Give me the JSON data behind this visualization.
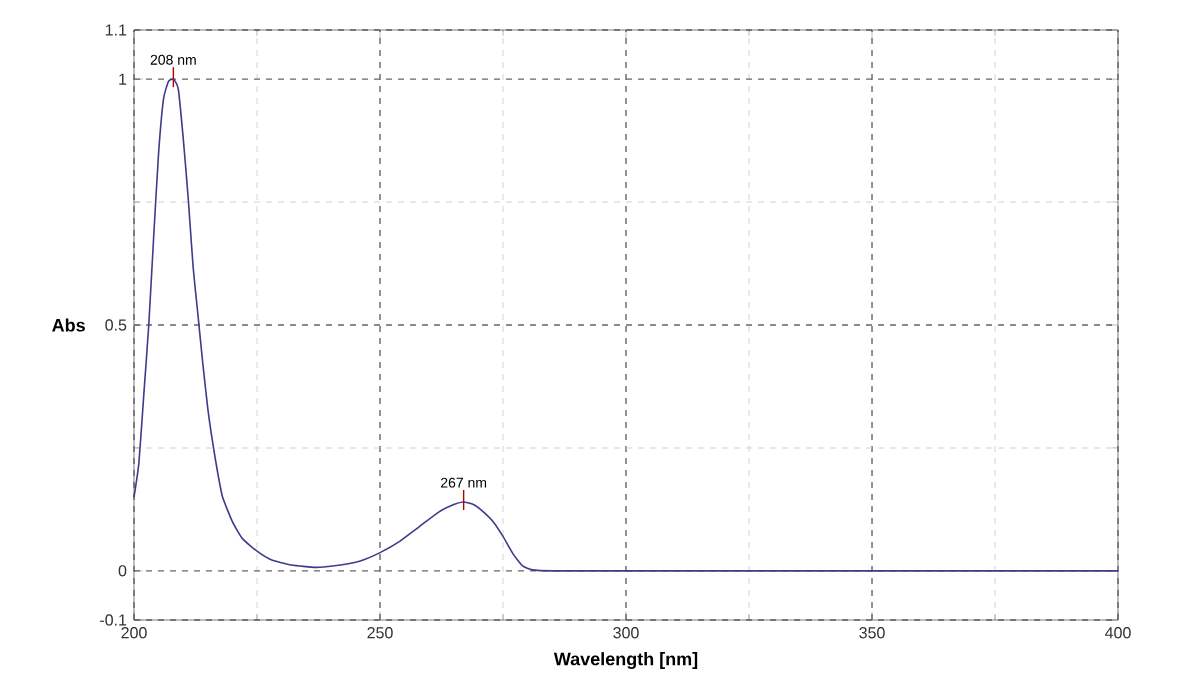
{
  "chart_data": {
    "type": "line",
    "xlabel": "Wavelength [nm]",
    "ylabel": "Abs",
    "xlim": [
      200,
      400
    ],
    "ylim": [
      -0.1,
      1.1
    ],
    "xticks": [
      200,
      {
        "value": 225,
        "label": null
      },
      250,
      {
        "value": 275,
        "label": null
      },
      300,
      {
        "value": 325,
        "label": null
      },
      350,
      {
        "value": 375,
        "label": null
      },
      400
    ],
    "yticks": [
      -0.1,
      0,
      {
        "value": 0.25,
        "label": null
      },
      0.5,
      {
        "value": 0.75,
        "label": null
      },
      1,
      1.1
    ],
    "grid": true,
    "marker": "none",
    "line_style": "solid",
    "series": [
      {
        "color": "#3c3c8c",
        "x": [
          200,
          201,
          202,
          203,
          204,
          205,
          206,
          207,
          208,
          209,
          210,
          211,
          212,
          213,
          214,
          215,
          216,
          217,
          218,
          220,
          222,
          225,
          228,
          232,
          237,
          242,
          246,
          250,
          254,
          258,
          262,
          265,
          267,
          269,
          271,
          273,
          275,
          277,
          279,
          281,
          285,
          300,
          350,
          400
        ],
        "values": [
          0.15,
          0.22,
          0.36,
          0.5,
          0.68,
          0.85,
          0.96,
          0.995,
          1.0,
          0.98,
          0.88,
          0.76,
          0.62,
          0.52,
          0.42,
          0.33,
          0.26,
          0.2,
          0.15,
          0.1,
          0.066,
          0.04,
          0.022,
          0.012,
          0.007,
          0.012,
          0.02,
          0.037,
          0.06,
          0.09,
          0.12,
          0.135,
          0.14,
          0.135,
          0.12,
          0.1,
          0.07,
          0.035,
          0.01,
          0.002,
          0,
          0,
          0,
          0
        ]
      }
    ],
    "annotations": [
      {
        "text": "208 nm",
        "x": 208,
        "y": 1.0
      },
      {
        "text": "267 nm",
        "x": 267,
        "y": 0.14
      }
    ]
  }
}
